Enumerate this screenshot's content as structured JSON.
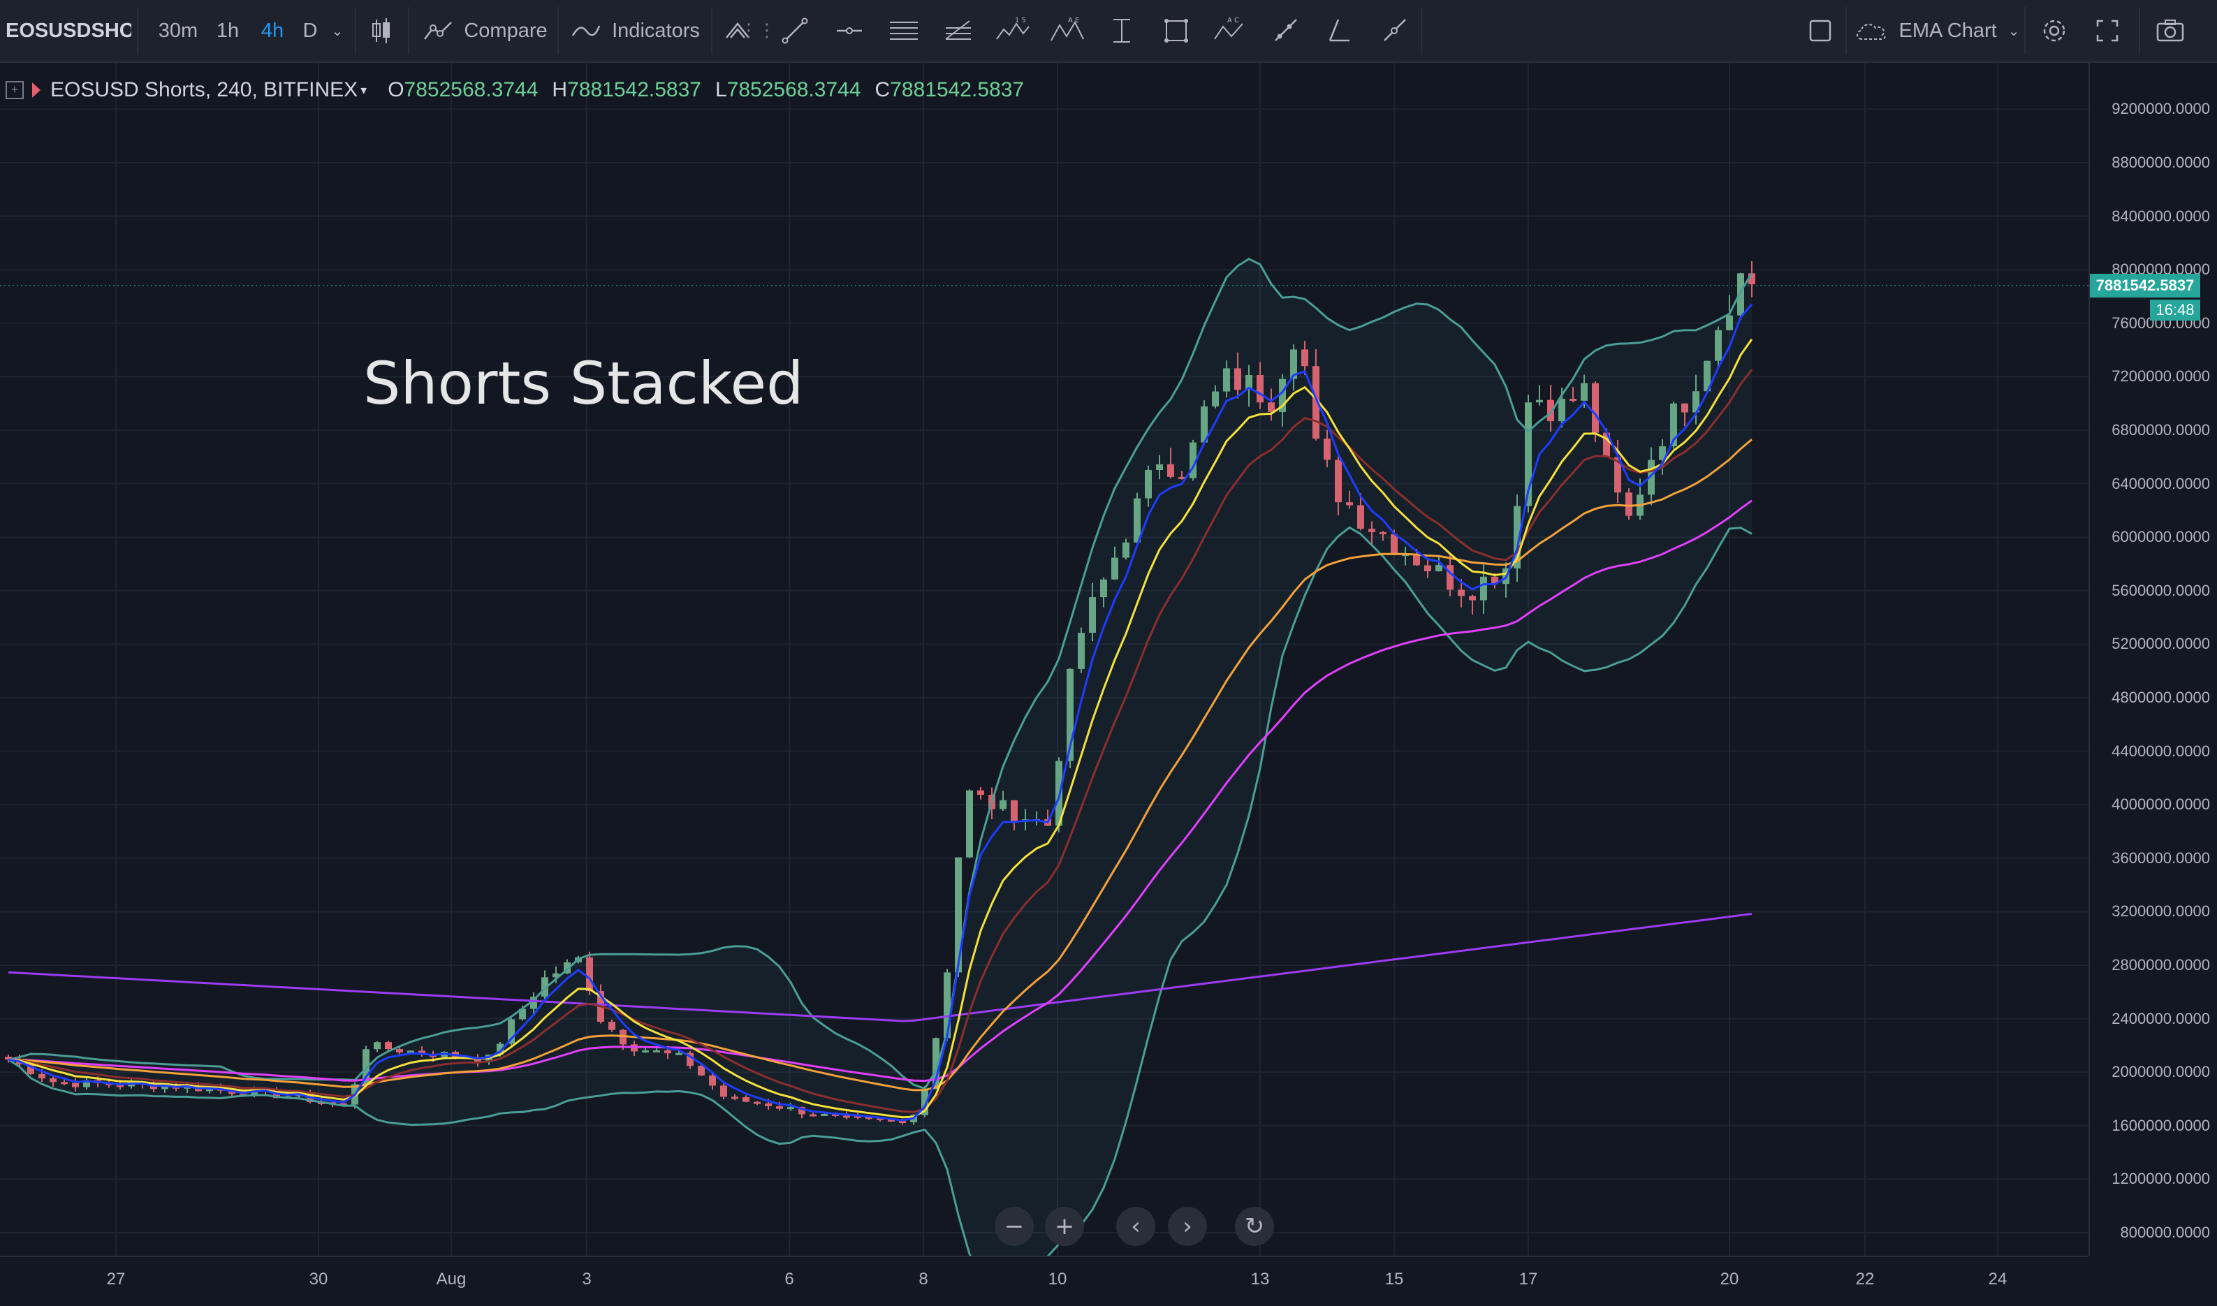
{
  "toolbar": {
    "symbol": "EOSUSDSHORTS",
    "intervals": [
      "30m",
      "1h",
      "4h",
      "D"
    ],
    "active_interval": "4h",
    "compare_label": "Compare",
    "indicators_label": "Indicators",
    "layout_name": "EMA Chart"
  },
  "legend": {
    "title": "EOSUSD Shorts, 240, BITFINEX",
    "o_key": "O",
    "o": "7852568.3744",
    "h_key": "H",
    "h": "7881542.5837",
    "l_key": "L",
    "l": "7852568.3744",
    "c_key": "C",
    "c": "7881542.5837"
  },
  "annotation": "Shorts Stacked",
  "last_price": "7881542.5837",
  "countdown": "16:48",
  "price_axis_labels": [
    "9200000.0000",
    "8800000.0000",
    "8400000.0000",
    "8000000.0000",
    "7600000.0000",
    "7200000.0000",
    "6800000.0000",
    "6400000.0000",
    "6000000.0000",
    "5600000.0000",
    "5200000.0000",
    "4800000.0000",
    "4400000.0000",
    "4000000.0000",
    "3600000.0000",
    "3200000.0000",
    "2800000.0000",
    "2400000.0000",
    "2000000.0000",
    "1600000.0000",
    "1200000.0000",
    "800000.0000"
  ],
  "time_axis_labels": [
    "27",
    "30",
    "Aug",
    "3",
    "6",
    "8",
    "10",
    "13",
    "15",
    "17",
    "20",
    "22",
    "24"
  ],
  "colors": {
    "background": "#131722",
    "up": "#6aa784",
    "down": "#e0606d",
    "ema_fast": "#1e3cff",
    "ema_yellow": "#f5e13c",
    "ema_brown": "#8b2e2e",
    "ema_orange": "#f4a13a",
    "ema_magenta": "#e040fb",
    "ema_purple": "#9c3cf5",
    "bollinger": "#4a9e96"
  },
  "chart_data": {
    "type": "candlestick",
    "x_range": [
      "Jul 26",
      "Aug 24"
    ],
    "ylim": [
      600000,
      9400000
    ],
    "last_close": 7881542.5837,
    "series_names": []
  }
}
